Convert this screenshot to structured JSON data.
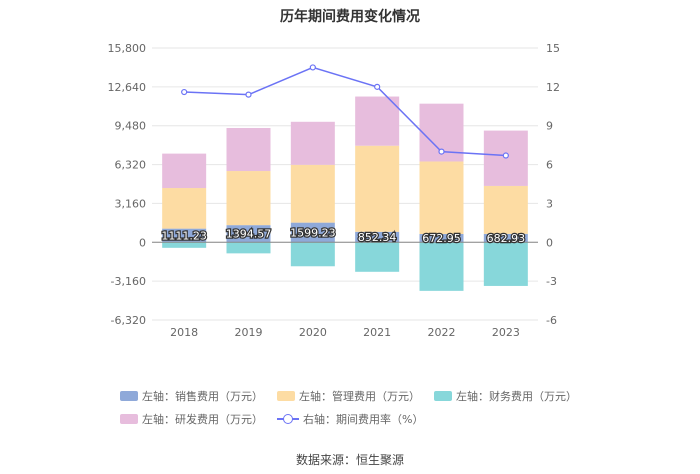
{
  "title": "历年期间费用变化情况",
  "source": "数据来源：恒生聚源",
  "chart_data": {
    "type": "bar",
    "stacked": true,
    "categories": [
      "2018",
      "2019",
      "2020",
      "2021",
      "2022",
      "2023"
    ],
    "left_axis": {
      "ticks": [
        "15,800",
        "12,640",
        "9,480",
        "6,320",
        "3,160",
        "0",
        "-3,160",
        "-6,320"
      ],
      "range": [
        -6320,
        15800
      ]
    },
    "right_axis": {
      "ticks": [
        "15",
        "12",
        "9",
        "6",
        "3",
        "0",
        "-3",
        "-6"
      ],
      "range": [
        -6,
        15
      ]
    },
    "series": [
      {
        "name": "左轴：销售费用（万元）",
        "color": "#8fa9d9",
        "values": [
          1111.23,
          1394.57,
          1599.23,
          852.34,
          672.95,
          682.93
        ],
        "labels": [
          "1111.23",
          "1394.57",
          "1599.23",
          "852.34",
          "672.95",
          "682.93"
        ]
      },
      {
        "name": "左轴：管理费用（万元）",
        "color": "#fddca3",
        "values": [
          3300,
          4400,
          4700,
          7000,
          5900,
          3900
        ]
      },
      {
        "name": "左轴：财务费用（万元）",
        "color": "#87d7da",
        "values": [
          -450,
          -900,
          -1950,
          -2400,
          -3950,
          -3550
        ]
      },
      {
        "name": "左轴：研发费用（万元）",
        "color": "#e7bddd",
        "values": [
          2800,
          3500,
          3500,
          4000,
          4700,
          4500
        ]
      }
    ],
    "line": {
      "name": "右轴：期间费用率（%）",
      "color": "#6b73f5",
      "values": [
        11.6,
        11.4,
        13.5,
        12.0,
        7.0,
        6.7
      ]
    }
  }
}
